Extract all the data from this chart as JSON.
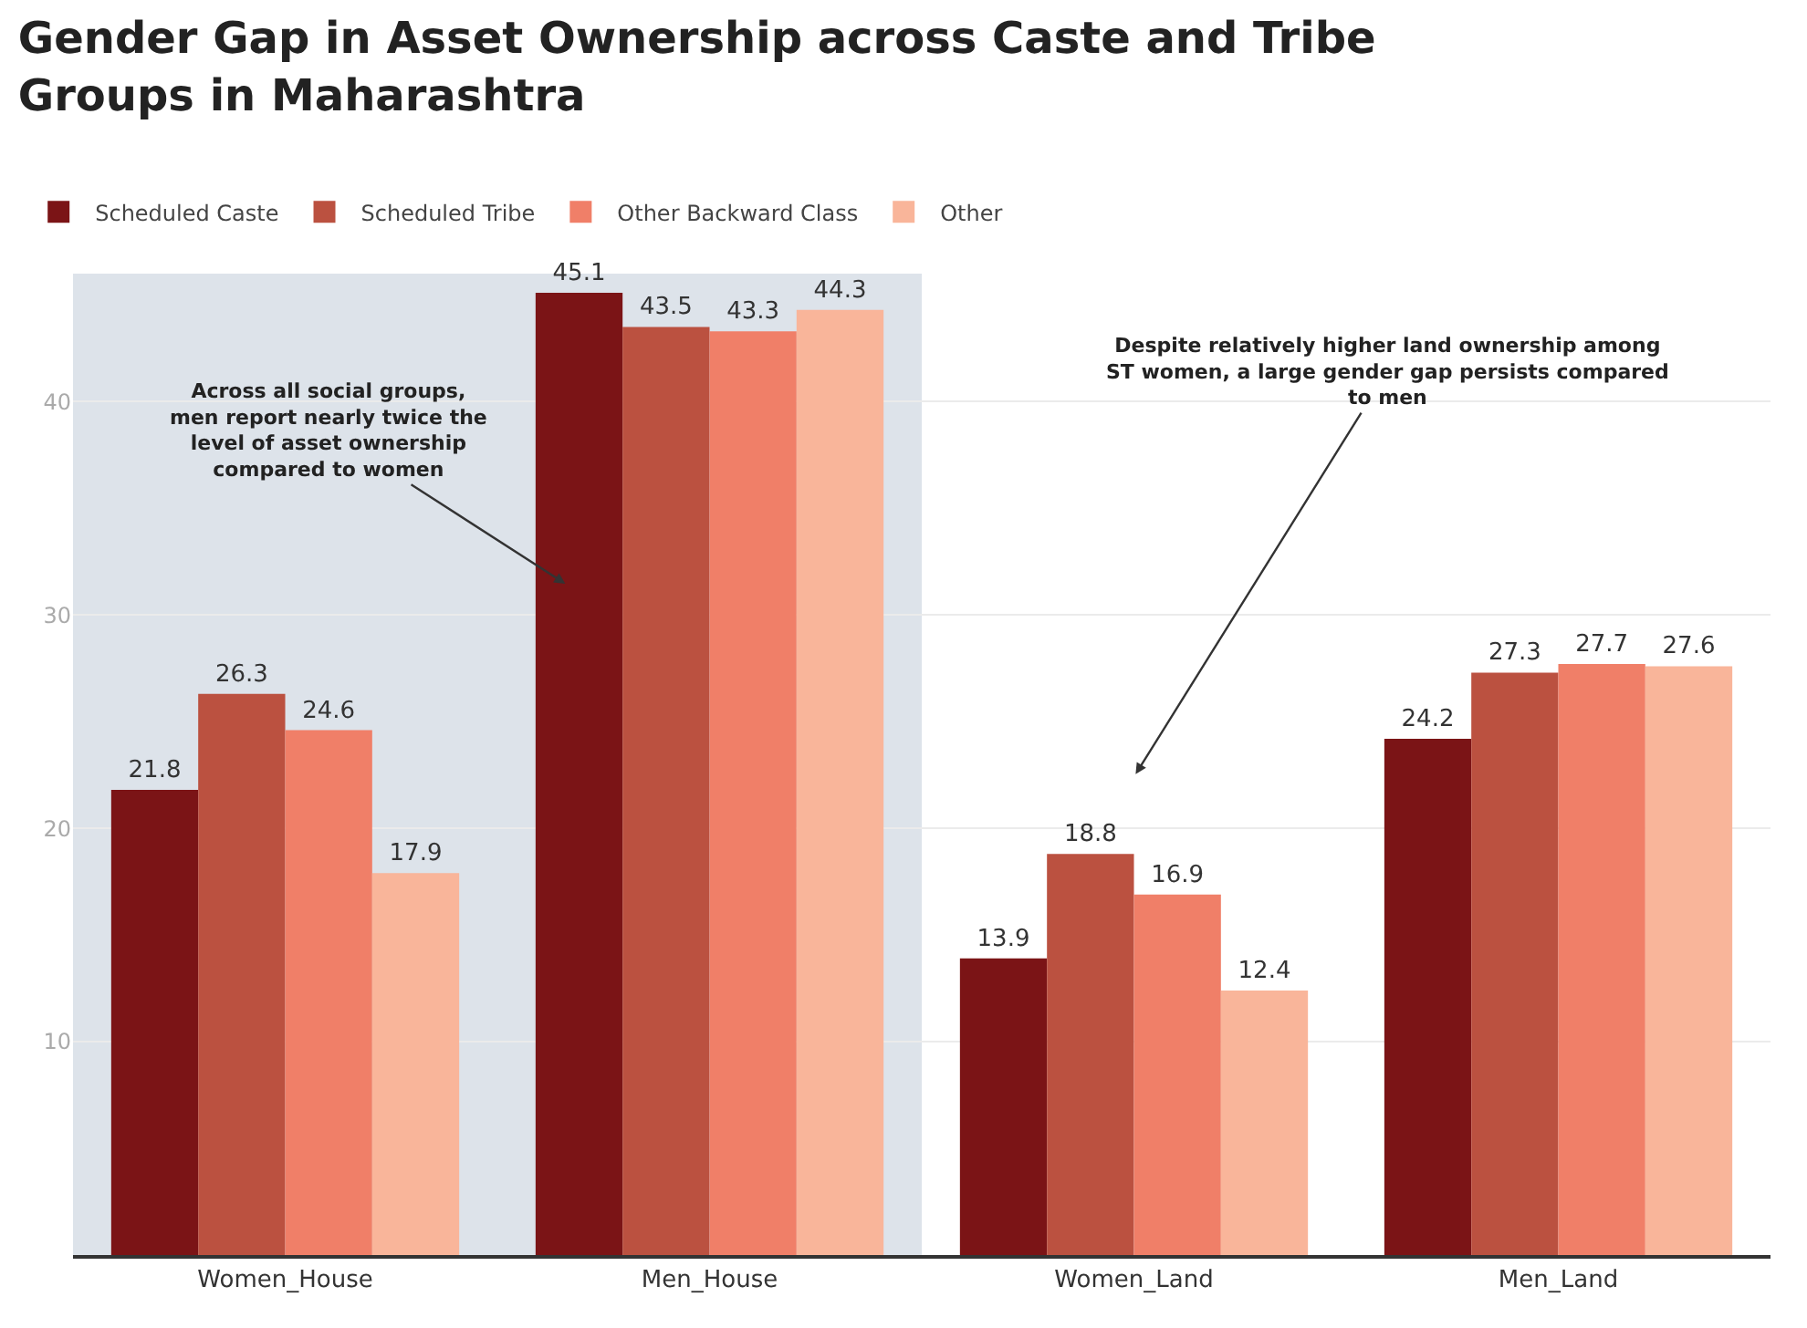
{
  "chart_data": {
    "type": "bar",
    "title": "Gender Gap in Asset Ownership across Caste and Tribe Groups in Maharashtra",
    "categories": [
      "Women_House",
      "Men_House",
      "Women_Land",
      "Men_Land"
    ],
    "series": [
      {
        "name": "Scheduled Caste",
        "color": "#7b1416",
        "values": [
          21.8,
          45.1,
          13.9,
          24.2
        ]
      },
      {
        "name": "Scheduled Tribe",
        "color": "#bb5140",
        "values": [
          26.3,
          43.5,
          18.8,
          27.3
        ]
      },
      {
        "name": "Other Backward Class",
        "color": "#f07f68",
        "values": [
          24.6,
          43.3,
          16.9,
          27.7
        ]
      },
      {
        "name": "Other",
        "color": "#f9b59a",
        "values": [
          17.9,
          44.3,
          12.4,
          27.6
        ]
      }
    ],
    "ylim": [
      0,
      46
    ],
    "yticks": [
      10,
      20,
      30,
      40
    ],
    "grid": "y",
    "legend": "top left",
    "data_labels": true,
    "bands": [
      {
        "axis": "x",
        "from": "Women_House",
        "to": "Men_House",
        "color": "#dde3ea"
      }
    ],
    "annotations": [
      "Across all social groups, men report nearly twice the level of asset ownership compared to women",
      "Despite relatively higher land ownership among ST women, a large gender gap persists compared to men"
    ]
  }
}
